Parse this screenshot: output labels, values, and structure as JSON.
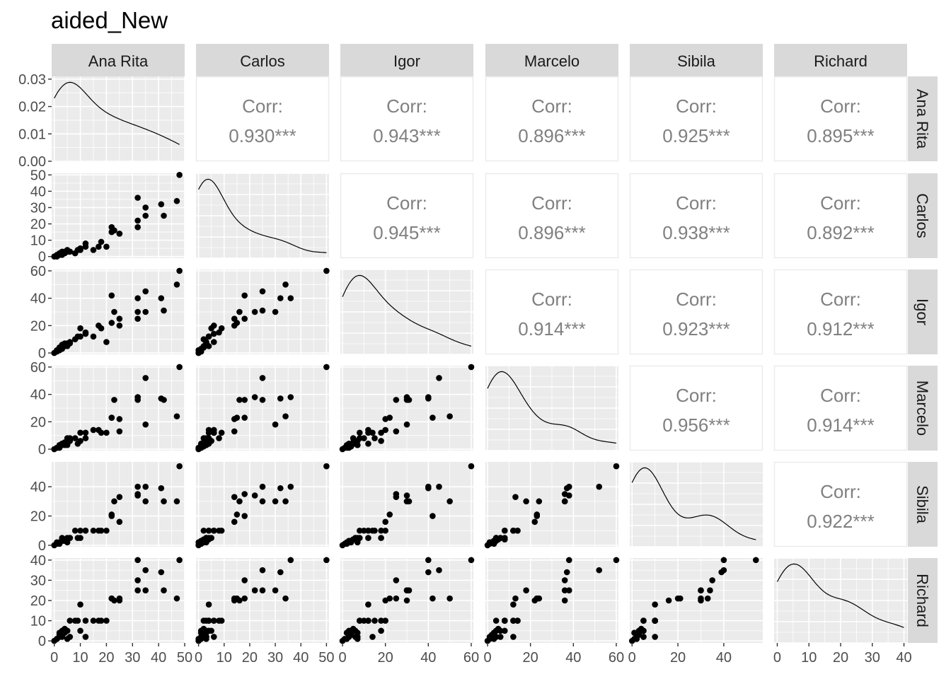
{
  "title": "aided_New",
  "chart_data": {
    "type": "scatter",
    "title": "aided_New",
    "variables": [
      "Ana Rita",
      "Carlos",
      "Igor",
      "Marcelo",
      "Sibila",
      "Richard"
    ],
    "corr_label": "Corr:",
    "correlations": [
      {
        "row": "Ana Rita",
        "col": "Carlos",
        "text": "0.930***"
      },
      {
        "row": "Ana Rita",
        "col": "Igor",
        "text": "0.943***"
      },
      {
        "row": "Ana Rita",
        "col": "Marcelo",
        "text": "0.896***"
      },
      {
        "row": "Ana Rita",
        "col": "Sibila",
        "text": "0.925***"
      },
      {
        "row": "Ana Rita",
        "col": "Richard",
        "text": "0.895***"
      },
      {
        "row": "Carlos",
        "col": "Igor",
        "text": "0.945***"
      },
      {
        "row": "Carlos",
        "col": "Marcelo",
        "text": "0.896***"
      },
      {
        "row": "Carlos",
        "col": "Sibila",
        "text": "0.938***"
      },
      {
        "row": "Carlos",
        "col": "Richard",
        "text": "0.892***"
      },
      {
        "row": "Igor",
        "col": "Marcelo",
        "text": "0.914***"
      },
      {
        "row": "Igor",
        "col": "Sibila",
        "text": "0.923***"
      },
      {
        "row": "Igor",
        "col": "Richard",
        "text": "0.912***"
      },
      {
        "row": "Marcelo",
        "col": "Sibila",
        "text": "0.956***"
      },
      {
        "row": "Marcelo",
        "col": "Richard",
        "text": "0.914***"
      },
      {
        "row": "Sibila",
        "col": "Richard",
        "text": "0.922***"
      }
    ],
    "x_axes": [
      {
        "var": "Ana Rita",
        "lim": [
          -1,
          50
        ],
        "ticks": [
          0,
          10,
          20,
          30,
          40,
          50
        ]
      },
      {
        "var": "Carlos",
        "lim": [
          -1,
          51
        ],
        "ticks": [
          0,
          10,
          20,
          30,
          40,
          50
        ]
      },
      {
        "var": "Igor",
        "lim": [
          -1,
          61
        ],
        "ticks": [
          0,
          20,
          40,
          60
        ]
      },
      {
        "var": "Marcelo",
        "lim": [
          -1,
          61
        ],
        "ticks": [
          0,
          20,
          40,
          60
        ]
      },
      {
        "var": "Sibila",
        "lim": [
          -1,
          57
        ],
        "ticks": [
          0,
          20,
          40
        ]
      },
      {
        "var": "Richard",
        "lim": [
          -1,
          41
        ],
        "ticks": [
          0,
          10,
          20,
          30,
          40
        ]
      }
    ],
    "y_axes": [
      {
        "var": "Ana Rita",
        "lim": [
          0,
          0.031
        ],
        "ticks": [
          0.0,
          0.01,
          0.02,
          0.03
        ],
        "labels": [
          "0.00",
          "0.01",
          "0.02",
          "0.03"
        ]
      },
      {
        "var": "Carlos",
        "lim": [
          -1,
          51
        ],
        "ticks": [
          0,
          10,
          20,
          30,
          40,
          50
        ],
        "labels": [
          "0",
          "10",
          "20",
          "30",
          "40",
          "50"
        ]
      },
      {
        "var": "Igor",
        "lim": [
          -1,
          61
        ],
        "ticks": [
          0,
          20,
          40,
          60
        ],
        "labels": [
          "0",
          "20",
          "40",
          "60"
        ]
      },
      {
        "var": "Marcelo",
        "lim": [
          -1,
          61
        ],
        "ticks": [
          0,
          20,
          40,
          60
        ],
        "labels": [
          "0",
          "20",
          "40",
          "60"
        ]
      },
      {
        "var": "Sibila",
        "lim": [
          -1,
          57
        ],
        "ticks": [
          0,
          20,
          40
        ],
        "labels": [
          "0",
          "20",
          "40"
        ]
      },
      {
        "var": "Richard",
        "lim": [
          -1,
          41
        ],
        "ticks": [
          0,
          10,
          20,
          30,
          40
        ],
        "labels": [
          "0",
          "10",
          "20",
          "30",
          "40"
        ]
      }
    ],
    "observations": {
      "Ana Rita": [
        0,
        1,
        1,
        2,
        2,
        2,
        3,
        3,
        3,
        4,
        4,
        5,
        5,
        5,
        6,
        6,
        8,
        9,
        10,
        10,
        12,
        12,
        15,
        17,
        18,
        20,
        22,
        22,
        23,
        25,
        25,
        32,
        32,
        32,
        35,
        35,
        41,
        42,
        47,
        48
      ],
      "Carlos": [
        0,
        1,
        0,
        1,
        1,
        2,
        2,
        1,
        3,
        2,
        3,
        3,
        4,
        3,
        3,
        3,
        2,
        4,
        4,
        5,
        6,
        8,
        4,
        6,
        9,
        6,
        18,
        15,
        16,
        14,
        14,
        18,
        22,
        36,
        25,
        30,
        32,
        25,
        34,
        50
      ],
      "Igor": [
        0,
        1,
        2,
        3,
        2,
        4,
        4,
        3,
        6,
        5,
        7,
        6,
        5,
        7,
        7,
        8,
        10,
        12,
        12,
        18,
        14,
        15,
        12,
        20,
        18,
        8,
        42,
        22,
        30,
        25,
        20,
        25,
        30,
        40,
        45,
        30,
        40,
        31,
        50,
        60
      ],
      "Marcelo": [
        0,
        1,
        1,
        1,
        3,
        2,
        3,
        4,
        4,
        5,
        3,
        4,
        8,
        3,
        6,
        8,
        8,
        4,
        12,
        6,
        12,
        8,
        14,
        14,
        12,
        12,
        23,
        23,
        36,
        13,
        22,
        36,
        38,
        38,
        52,
        18,
        37,
        36,
        24,
        60
      ],
      "Sibila": [
        0,
        1,
        2,
        2,
        1,
        2,
        3,
        3,
        5,
        4,
        3,
        5,
        4,
        2,
        5,
        5,
        10,
        5,
        10,
        5,
        10,
        10,
        10,
        10,
        10,
        10,
        20,
        21,
        30,
        33,
        16,
        35,
        34,
        40,
        40,
        30,
        39,
        30,
        30,
        54
      ],
      "Richard": [
        0,
        1,
        1,
        2,
        4,
        3,
        3,
        5,
        2,
        6,
        4,
        5,
        5,
        1,
        2,
        10,
        10,
        10,
        18,
        5,
        2,
        10,
        10,
        10,
        10,
        10,
        21,
        21,
        20,
        21,
        20,
        30,
        25,
        40,
        35,
        25,
        34,
        25,
        21,
        40
      ]
    }
  }
}
